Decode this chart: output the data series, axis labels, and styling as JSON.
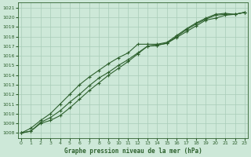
{
  "title": "Graphe pression niveau de la mer (hPa)",
  "background_color": "#cde8d8",
  "grid_color": "#a8ccb8",
  "line_color": "#2d602d",
  "x_values": [
    0,
    1,
    2,
    3,
    4,
    5,
    6,
    7,
    8,
    9,
    10,
    11,
    12,
    13,
    14,
    15,
    16,
    17,
    18,
    19,
    20,
    21,
    22,
    23
  ],
  "line1": [
    1008.0,
    1008.2,
    1009.0,
    1009.3,
    1009.8,
    1010.6,
    1011.5,
    1012.4,
    1013.2,
    1014.0,
    1014.7,
    1015.4,
    1016.2,
    1017.0,
    1017.1,
    1017.3,
    1017.9,
    1018.5,
    1019.1,
    1019.7,
    1019.9,
    1020.2,
    1020.3,
    1020.5
  ],
  "line2": [
    1008.0,
    1008.5,
    1009.3,
    1010.0,
    1011.0,
    1012.0,
    1013.0,
    1013.8,
    1014.5,
    1015.2,
    1015.8,
    1016.3,
    1017.2,
    1017.2,
    1017.2,
    1017.4,
    1018.1,
    1018.8,
    1019.4,
    1019.9,
    1020.3,
    1020.4,
    1020.3,
    1020.5
  ],
  "line3": [
    1008.0,
    1008.2,
    1009.1,
    1009.6,
    1010.3,
    1011.2,
    1012.0,
    1012.9,
    1013.7,
    1014.3,
    1015.0,
    1015.6,
    1016.3,
    1017.0,
    1017.1,
    1017.3,
    1018.0,
    1018.7,
    1019.3,
    1019.8,
    1020.2,
    1020.3,
    1020.3,
    1020.5
  ],
  "ylim": [
    1007.5,
    1021.5
  ],
  "yticks": [
    1008,
    1009,
    1010,
    1011,
    1012,
    1013,
    1014,
    1015,
    1016,
    1017,
    1018,
    1019,
    1020,
    1021
  ],
  "xlim": [
    -0.3,
    23.3
  ],
  "xticks": [
    0,
    1,
    2,
    3,
    4,
    5,
    6,
    7,
    8,
    9,
    10,
    11,
    12,
    13,
    14,
    15,
    16,
    17,
    18,
    19,
    20,
    21,
    22,
    23
  ],
  "figwidth": 3.2,
  "figheight": 2.0,
  "dpi": 100
}
